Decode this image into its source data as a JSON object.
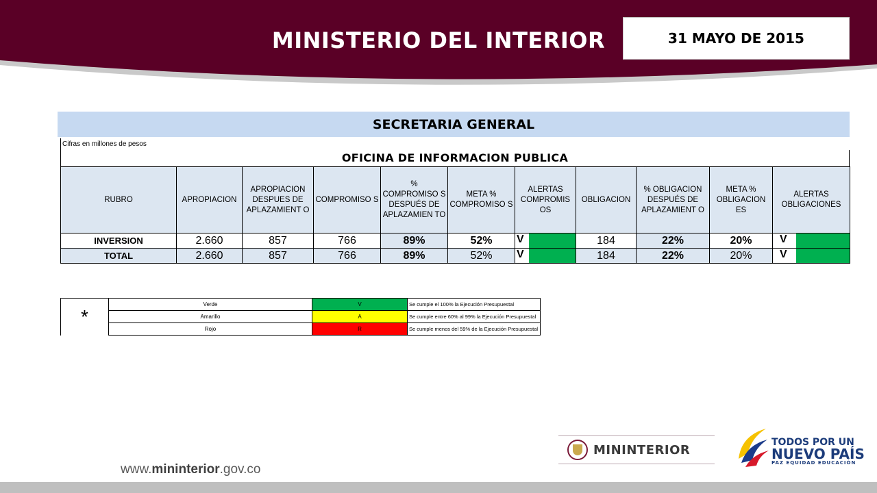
{
  "header": {
    "title": "MINISTERIO DEL INTERIOR",
    "date": "31 MAYO DE 2015",
    "band_color": "#5a0026"
  },
  "section": {
    "title": "SECRETARIA GENERAL"
  },
  "table": {
    "note": "Cifras en millones de pesos",
    "office": "OFICINA DE INFORMACION PUBLICA",
    "columns": [
      "RUBRO",
      "APROPIACION",
      "APROPIACION DESPUES DE APLAZAMIENT O",
      "COMPROMISO S",
      "% COMPROMISO S DESPUÉS DE APLAZAMIEN TO",
      "META % COMPROMISO S",
      "ALERTAS COMPROMIS OS",
      "OBLIGACION",
      "% OBLIGACION DESPUÉS DE APLAZAMIENT O",
      "META % OBLIGACION ES",
      "ALERTAS OBLIGACIONES"
    ],
    "rows": [
      {
        "rubro": "INVERSION",
        "apropiacion": "2.660",
        "apropiacion_aplazamiento": "857",
        "compromisos": "766",
        "pct_compromisos": "89%",
        "meta_compromisos": "52%",
        "alerta_compromisos": "V",
        "obligacion": "184",
        "pct_obligacion": "22%",
        "meta_obligaciones": "20%",
        "alerta_obligaciones": "V"
      },
      {
        "rubro": "TOTAL",
        "apropiacion": "2.660",
        "apropiacion_aplazamiento": "857",
        "compromisos": "766",
        "pct_compromisos": "89%",
        "meta_compromisos": "52%",
        "alerta_compromisos": "V",
        "obligacion": "184",
        "pct_obligacion": "22%",
        "meta_obligaciones": "20%",
        "alerta_obligaciones": "V"
      }
    ],
    "alert_color": "#00b050"
  },
  "legend": {
    "marker": "*",
    "items": [
      {
        "name": "Verde",
        "code": "V",
        "color": "#00b050",
        "desc": "Se cumple el 100% la Ejecución Presupuestal"
      },
      {
        "name": "Amarillo",
        "code": "A",
        "color": "#ffff00",
        "desc": "Se cumple entre 60% al 99% la Ejecución Presupuestal"
      },
      {
        "name": "Rojo",
        "code": "R",
        "color": "#ff0000",
        "desc": "Se cumple menos del 59% de la Ejecución Presupuestal"
      }
    ]
  },
  "footer": {
    "site_prefix": "www.",
    "site_bold": "mininterior",
    "site_suffix": ".gov.co",
    "logo_left": "MININTERIOR",
    "logo_right_line1": "TODOS POR UN",
    "logo_right_line2": "NUEVO PAÍS",
    "logo_right_line3": "PAZ EQUIDAD EDUCACIÓN"
  }
}
